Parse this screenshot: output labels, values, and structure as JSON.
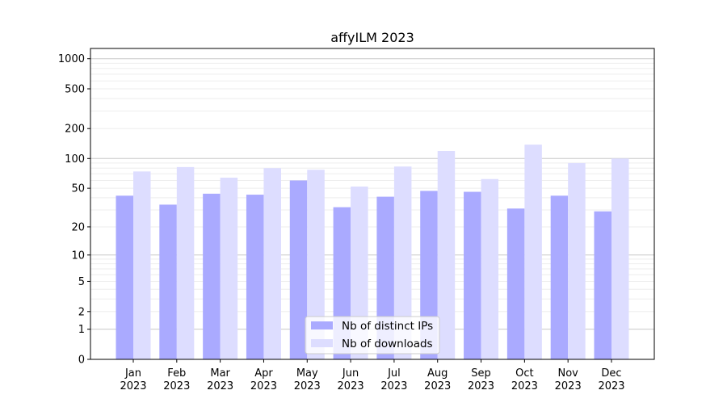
{
  "chart_data": {
    "type": "bar",
    "title": "affyILM 2023",
    "xlabel": "",
    "ylabel": "",
    "yscale": "log(1+y)",
    "ylim": [
      0,
      1270
    ],
    "yticks": [
      0,
      1,
      2,
      5,
      10,
      20,
      50,
      100,
      200,
      500,
      1000
    ],
    "grid": true,
    "legend_position": "bottom-center",
    "categories": [
      "Jan\n2023",
      "Feb\n2023",
      "Mar\n2023",
      "Apr\n2023",
      "May\n2023",
      "Jun\n2023",
      "Jul\n2023",
      "Aug\n2023",
      "Sep\n2023",
      "Oct\n2023",
      "Nov\n2023",
      "Dec\n2023"
    ],
    "series": [
      {
        "name": "Nb of distinct IPs",
        "color": "#aaaaff",
        "values": [
          42,
          34,
          44,
          43,
          60,
          32,
          41,
          47,
          46,
          31,
          42,
          29
        ]
      },
      {
        "name": "Nb of downloads",
        "color": "#ddddff",
        "values": [
          74,
          82,
          64,
          80,
          77,
          52,
          83,
          119,
          62,
          138,
          90,
          100
        ]
      }
    ]
  }
}
